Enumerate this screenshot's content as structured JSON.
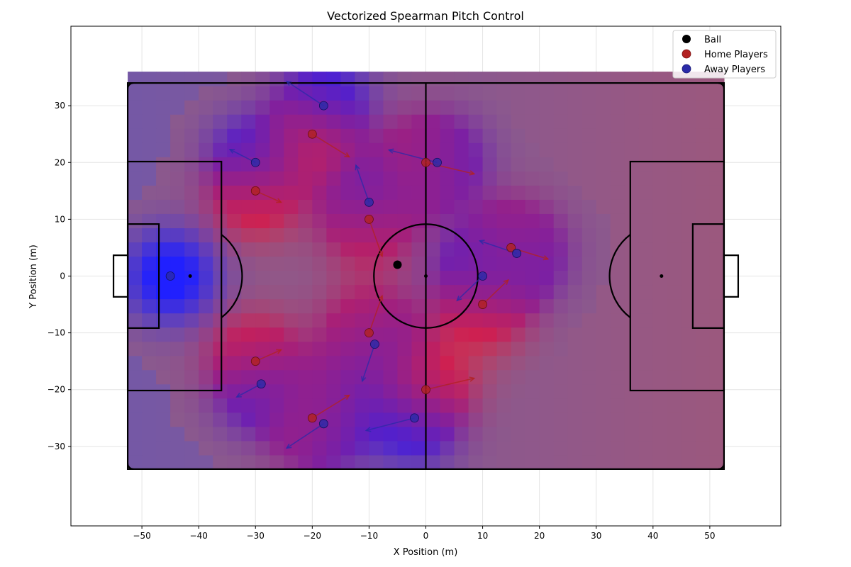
{
  "chart_data": {
    "type": "scatter",
    "title": "Vectorized Spearman Pitch Control",
    "xlabel": "X Position (m)",
    "ylabel": "Y Position (m)",
    "xlim": [
      -62.5,
      62.5
    ],
    "ylim": [
      -44,
      44
    ],
    "xticks": [
      -50,
      -40,
      -30,
      -20,
      -10,
      0,
      10,
      20,
      30,
      40,
      50
    ],
    "yticks": [
      -30,
      -20,
      -10,
      0,
      10,
      20,
      30
    ],
    "grid": true,
    "legend_position": "top-right",
    "legend": [
      {
        "label": "Ball",
        "color": "#000000"
      },
      {
        "label": "Home Players",
        "color": "#b22222"
      },
      {
        "label": "Away Players",
        "color": "#2a2aa8"
      }
    ],
    "colors": {
      "home": "#b22222",
      "away": "#2a2aa8",
      "ball": "#000000",
      "home_field": "#ff2020",
      "away_field": "#2020ff",
      "neutral_field": "#8c5a8c"
    },
    "pitch": {
      "length": 105,
      "width": 68
    },
    "series": [
      {
        "name": "Ball",
        "points": [
          {
            "x": -5,
            "y": 2
          }
        ]
      },
      {
        "name": "Home Players",
        "points": [
          {
            "x": -20,
            "y": 25,
            "vx": 6.5,
            "vy": -4
          },
          {
            "x": -30,
            "y": 15,
            "vx": 4.5,
            "vy": -2
          },
          {
            "x": -10,
            "y": 10,
            "vx": 2.3,
            "vy": -6.5
          },
          {
            "x": 0,
            "y": 20,
            "vx": 8.5,
            "vy": -2
          },
          {
            "x": 15,
            "y": 5,
            "vx": 6.5,
            "vy": -2
          },
          {
            "x": 10,
            "y": -5,
            "vx": 4.5,
            "vy": 4.3
          },
          {
            "x": -10,
            "y": -10,
            "vx": 2.3,
            "vy": 6.5
          },
          {
            "x": -30,
            "y": -15,
            "vx": 4.5,
            "vy": 2
          },
          {
            "x": 0,
            "y": -20,
            "vx": 8.5,
            "vy": 2
          },
          {
            "x": -20,
            "y": -25,
            "vx": 6.5,
            "vy": 4
          }
        ]
      },
      {
        "name": "Away Players",
        "points": [
          {
            "x": -18,
            "y": 30,
            "vx": -6.5,
            "vy": 4.3
          },
          {
            "x": -30,
            "y": 20,
            "vx": -4.5,
            "vy": 2.3
          },
          {
            "x": -10,
            "y": 13,
            "vx": -2.3,
            "vy": 6.5
          },
          {
            "x": 2,
            "y": 20,
            "vx": -8.5,
            "vy": 2.2
          },
          {
            "x": 16,
            "y": 4,
            "vx": -6.5,
            "vy": 2.2
          },
          {
            "x": 10,
            "y": 0,
            "vx": -4.5,
            "vy": -4.3
          },
          {
            "x": -9,
            "y": -12,
            "vx": -2.2,
            "vy": -6.5
          },
          {
            "x": -29,
            "y": -19,
            "vx": -4.3,
            "vy": -2.3
          },
          {
            "x": -2,
            "y": -25,
            "vx": -8.5,
            "vy": -2.2
          },
          {
            "x": -18,
            "y": -26,
            "vx": -6.5,
            "vy": -4.3
          },
          {
            "x": -45,
            "y": 0,
            "vx": 0,
            "vy": 0
          }
        ]
      }
    ]
  }
}
